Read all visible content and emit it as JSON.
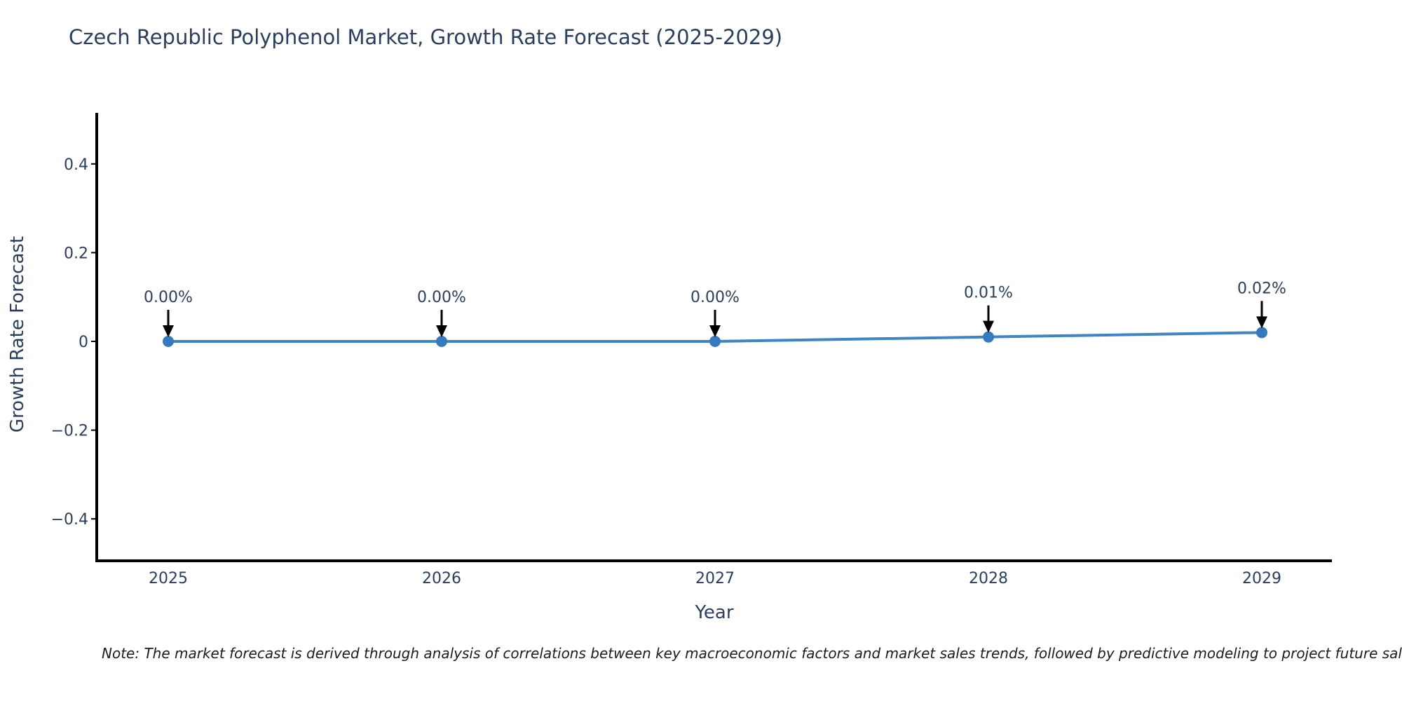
{
  "note": {
    "text": "Note: The market forecast is derived through analysis of correlations between key macroeconomic factors and market sales trends, followed by predictive modeling to project future sales."
  },
  "chart_data": {
    "type": "line",
    "title": "Czech Republic Polyphenol Market, Growth Rate Forecast (2025-2029)",
    "xlabel": "Year",
    "ylabel": "Growth Rate Forecast",
    "x": [
      2025,
      2026,
      2027,
      2028,
      2029
    ],
    "x_labels": [
      "2025",
      "2026",
      "2027",
      "2028",
      "2029"
    ],
    "series": [
      {
        "name": "Growth Rate Forecast",
        "values": [
          0.0,
          0.0,
          0.0,
          0.01,
          0.02
        ]
      }
    ],
    "point_labels": [
      "0.00%",
      "0.00%",
      "0.00%",
      "0.01%",
      "0.02%"
    ],
    "yticks": [
      0.4,
      0.2,
      0,
      -0.2,
      -0.4
    ],
    "ytick_labels": [
      "0.4",
      "0.2",
      "0",
      "−0.2",
      "−0.4"
    ],
    "ylim": [
      -0.49,
      0.51
    ],
    "grid": false,
    "legend": "none",
    "colors": {
      "line": "#3d85c6",
      "marker": "#3579be",
      "axis": "#000000",
      "tick_text": "#2a3f5f",
      "annotation_text": "#2a3f5f",
      "annotation_arrow": "#000000"
    }
  }
}
